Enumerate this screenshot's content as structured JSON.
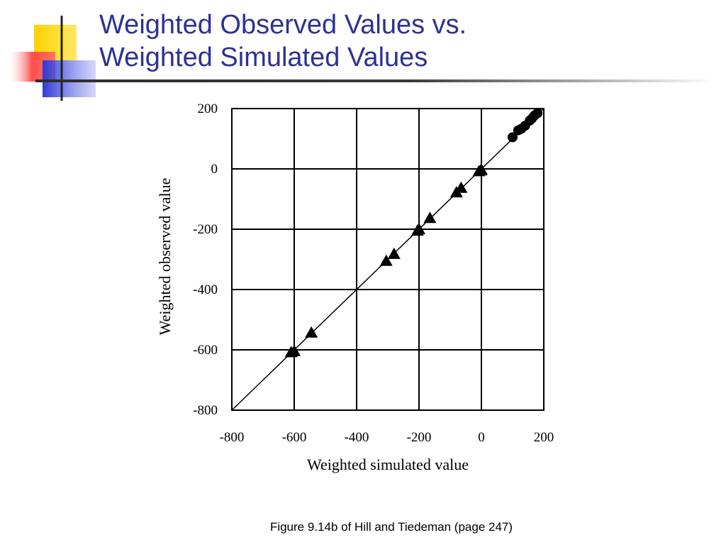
{
  "slide": {
    "title_line1": "Weighted Observed Values vs.",
    "title_line2": "Weighted Simulated Values",
    "caption": "Figure 9.14b of Hill and Tiedeman (page 247)",
    "colors": {
      "title": "#2e3192",
      "logo_yellow": "#ffd700",
      "logo_red": "#ff3b3b",
      "logo_blue": "#2f3bd6"
    }
  },
  "chart_data": {
    "type": "scatter",
    "xlabel": "Weighted simulated value",
    "ylabel": "Weighted observed value",
    "xlim": [
      -800,
      200
    ],
    "ylim": [
      -800,
      200
    ],
    "xticks": [
      "-800",
      "-600",
      "-400",
      "-200",
      "0",
      "200"
    ],
    "yticks": [
      "200",
      "0",
      "-200",
      "-400",
      "-600",
      "-800"
    ],
    "grid": true,
    "reference_line": {
      "from": [
        -800,
        -800
      ],
      "to": [
        200,
        200
      ]
    },
    "series": [
      {
        "marker": "triangle",
        "points": [
          [
            -610,
            -608
          ],
          [
            -600,
            -604
          ],
          [
            -545,
            -543
          ],
          [
            -305,
            -305
          ],
          [
            -280,
            -282
          ],
          [
            -205,
            -205
          ],
          [
            -200,
            -200
          ],
          [
            -165,
            -163
          ],
          [
            -80,
            -78
          ],
          [
            -65,
            -63
          ],
          [
            -8,
            -8
          ],
          [
            -2,
            -5
          ],
          [
            0,
            -3
          ]
        ]
      },
      {
        "marker": "circle",
        "points": [
          [
            100,
            105
          ],
          [
            118,
            128
          ],
          [
            128,
            133
          ],
          [
            140,
            143
          ],
          [
            155,
            160
          ],
          [
            162,
            167
          ],
          [
            170,
            177
          ],
          [
            180,
            185
          ]
        ]
      }
    ]
  }
}
